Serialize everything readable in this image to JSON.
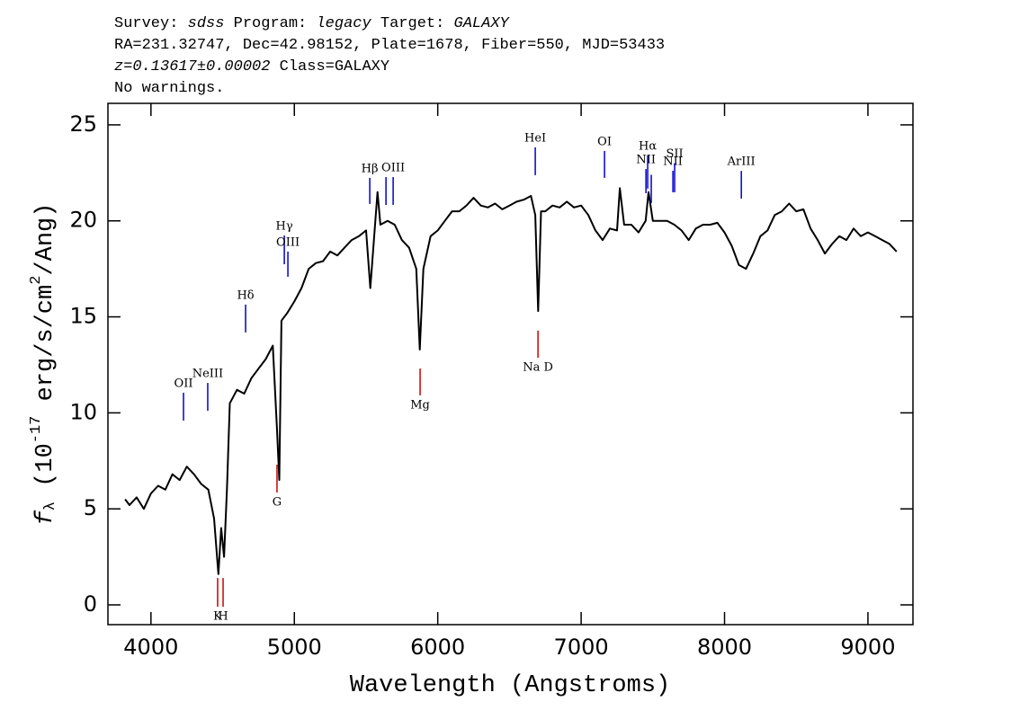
{
  "chart_data": {
    "type": "line",
    "header": [
      [
        "Survey: ",
        "sdss",
        " Program: ",
        "legacy",
        " Target: ",
        "GALAXY"
      ],
      [
        "RA=231.32747, Dec=42.98152, Plate=1678, Fiber=550, MJD=53433"
      ],
      [
        "z=0.13617±0.00002",
        " Class=GALAXY"
      ],
      [
        "No warnings."
      ]
    ],
    "x_label": "Wavelength (Angstroms)",
    "y_label": [
      "f",
      "λ",
      " (10",
      "-17",
      " erg/s/cm",
      "2",
      "/Ang)"
    ],
    "xlim": [
      3700,
      9314
    ],
    "ylim": [
      -1.03,
      26.12
    ],
    "xticks": [
      4000,
      5000,
      6000,
      7000,
      8000,
      9000
    ],
    "yticks": [
      0,
      5,
      10,
      15,
      20,
      25
    ],
    "series": [
      {
        "color": "#000000",
        "x": [
          3820,
          3850,
          3900,
          3950,
          4000,
          4050,
          4100,
          4150,
          4200,
          4250,
          4300,
          4350,
          4400,
          4440,
          4470,
          4490,
          4510,
          4530,
          4550,
          4600,
          4650,
          4700,
          4750,
          4800,
          4850,
          4880,
          4895,
          4910,
          4950,
          5000,
          5050,
          5100,
          5150,
          5200,
          5250,
          5300,
          5350,
          5400,
          5450,
          5500,
          5530,
          5560,
          5580,
          5600,
          5650,
          5700,
          5750,
          5800,
          5850,
          5875,
          5900,
          5950,
          6000,
          6050,
          6100,
          6150,
          6200,
          6250,
          6300,
          6350,
          6400,
          6450,
          6500,
          6550,
          6600,
          6650,
          6680,
          6700,
          6720,
          6750,
          6800,
          6850,
          6900,
          6950,
          7000,
          7050,
          7100,
          7150,
          7200,
          7250,
          7270,
          7300,
          7350,
          7400,
          7450,
          7470,
          7500,
          7550,
          7600,
          7650,
          7700,
          7750,
          7800,
          7850,
          7900,
          7950,
          8000,
          8050,
          8100,
          8150,
          8200,
          8250,
          8300,
          8350,
          8400,
          8450,
          8500,
          8550,
          8600,
          8650,
          8700,
          8750,
          8800,
          8850,
          8900,
          8950,
          9000,
          9050,
          9100,
          9150,
          9200
        ],
        "values": [
          5.5,
          5.2,
          5.6,
          5.0,
          5.8,
          6.2,
          6.0,
          6.8,
          6.5,
          7.2,
          6.8,
          6.3,
          6.0,
          4.5,
          1.6,
          4.0,
          2.5,
          6.0,
          10.5,
          11.2,
          11.0,
          11.8,
          12.3,
          12.8,
          13.5,
          9.0,
          6.5,
          14.8,
          15.2,
          15.8,
          16.5,
          17.5,
          17.8,
          17.9,
          18.4,
          18.2,
          18.6,
          19.0,
          19.2,
          19.5,
          16.5,
          19.5,
          21.5,
          19.8,
          20.0,
          19.8,
          19.0,
          18.6,
          17.5,
          13.3,
          17.5,
          19.2,
          19.5,
          20.0,
          20.5,
          20.5,
          20.8,
          21.2,
          20.8,
          20.7,
          20.9,
          20.6,
          20.8,
          21.0,
          21.1,
          21.3,
          20.3,
          15.3,
          20.5,
          20.5,
          20.8,
          20.7,
          21.0,
          20.7,
          20.8,
          20.3,
          19.5,
          19.0,
          19.6,
          19.5,
          21.7,
          19.8,
          19.8,
          19.4,
          20.0,
          21.5,
          20.0,
          20.0,
          20.0,
          19.8,
          19.5,
          19.0,
          19.6,
          19.8,
          19.8,
          19.9,
          19.4,
          18.7,
          17.7,
          17.5,
          18.3,
          19.2,
          19.5,
          20.3,
          20.5,
          20.9,
          20.5,
          20.6,
          19.6,
          19.0,
          18.3,
          18.8,
          19.2,
          19.0,
          19.6,
          19.2,
          19.4,
          19.2,
          19.0,
          18.8,
          18.4
        ]
      }
    ],
    "line_markers": [
      {
        "label": "OII",
        "wavelength": 4227,
        "ymin": 9.6,
        "ymax": 11.05,
        "color": "#0000cc"
      },
      {
        "label": "NeIII",
        "wavelength": 4396,
        "ymin": 10.11,
        "ymax": 11.56,
        "color": "#0000cc"
      },
      {
        "label": "K",
        "wavelength": 4465,
        "ymin": -0.1,
        "ymax": 1.4,
        "color": "#cc0000"
      },
      {
        "label": "H",
        "wavelength": 4503,
        "ymin": -0.1,
        "ymax": 1.4,
        "color": "#cc0000"
      },
      {
        "label": "Hδ",
        "wavelength": 4660,
        "ymin": 14.19,
        "ymax": 15.64,
        "color": "#0000cc"
      },
      {
        "label": "G",
        "wavelength": 4879,
        "ymin": 5.85,
        "ymax": 7.3,
        "color": "#cc0000"
      },
      {
        "label": "Hγ",
        "wavelength": 4930,
        "ymin": 17.74,
        "ymax": 19.24,
        "color": "#0000cc"
      },
      {
        "label": "OIII",
        "wavelength": 4955,
        "ymin": 17.09,
        "ymax": 18.4,
        "color": "#0000cc"
      },
      {
        "label": "Hβ",
        "wavelength": 5526,
        "ymin": 20.88,
        "ymax": 22.24,
        "color": "#0000cc"
      },
      {
        "wavelength": 5639,
        "ymin": 20.83,
        "ymax": 22.28,
        "color": "#0000cc"
      },
      {
        "label": "OIII",
        "wavelength": 5689,
        "ymin": 20.83,
        "ymax": 22.28,
        "color": "#0000cc"
      },
      {
        "label": "Mg",
        "wavelength": 5877,
        "ymin": 10.91,
        "ymax": 12.31,
        "color": "#cc0000"
      },
      {
        "label": "HeI",
        "wavelength": 6680,
        "ymin": 22.38,
        "ymax": 23.83,
        "color": "#0000cc"
      },
      {
        "label": "Na D",
        "wavelength": 6699,
        "ymin": 12.87,
        "ymax": 14.28,
        "color": "#cc0000"
      },
      {
        "label": "OI",
        "wavelength": 7163,
        "ymin": 22.24,
        "ymax": 23.64,
        "color": "#0000cc"
      },
      {
        "label": "NII",
        "wavelength": 7452,
        "ymin": 21.44,
        "ymax": 22.7,
        "color": "#0000cc"
      },
      {
        "label": "Hα",
        "wavelength": 7464,
        "ymin": 21.68,
        "ymax": 23.4,
        "color": "#0000cc"
      },
      {
        "wavelength": 7489,
        "ymin": 20.93,
        "ymax": 22.4,
        "color": "#0000cc"
      },
      {
        "label": "NII",
        "wavelength": 7640,
        "ymin": 21.49,
        "ymax": 22.61,
        "color": "#0000cc"
      },
      {
        "label": "SII",
        "wavelength": 7652,
        "ymin": 21.49,
        "ymax": 23.0,
        "color": "#0000cc"
      },
      {
        "label": "ArIII",
        "wavelength": 8117,
        "ymin": 21.16,
        "ymax": 22.6,
        "color": "#0000cc"
      }
    ]
  }
}
